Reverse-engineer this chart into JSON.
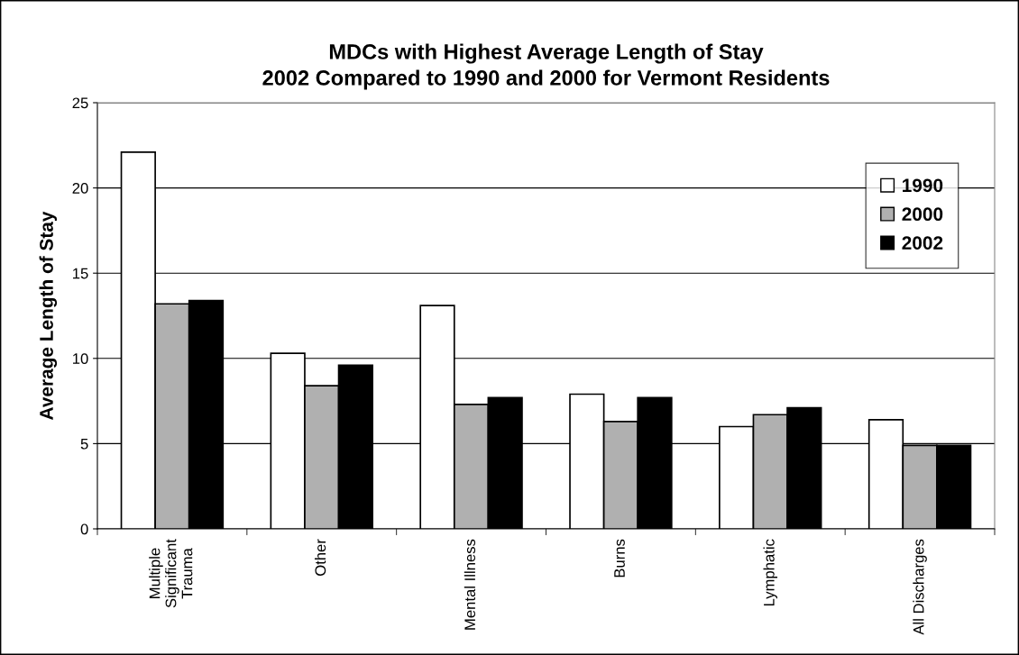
{
  "chart_data": {
    "type": "bar",
    "title": "MDCs with Highest Average Length of Stay\n2002 Compared to 1990 and 2000 for Vermont Residents",
    "ylabel": "Average Length of Stay",
    "categories": [
      "Multiple\nSignificant\nTrauma",
      "Other",
      "Mental Illness",
      "Burns",
      "Lymphatic",
      "All Discharges"
    ],
    "series": [
      {
        "name": "1990",
        "color": "#ffffff",
        "values": [
          22.1,
          10.3,
          13.1,
          7.9,
          6.0,
          6.4
        ]
      },
      {
        "name": "2000",
        "color": "#b0b0b0",
        "values": [
          13.2,
          8.4,
          7.3,
          6.3,
          6.7,
          4.9
        ]
      },
      {
        "name": "2002",
        "color": "#000000",
        "values": [
          13.4,
          9.6,
          7.7,
          7.7,
          7.1,
          4.9
        ]
      }
    ],
    "ylim": [
      0,
      25
    ],
    "yticks": [
      0,
      5,
      10,
      15,
      20,
      25
    ],
    "grid": "y",
    "legend": "top right"
  }
}
